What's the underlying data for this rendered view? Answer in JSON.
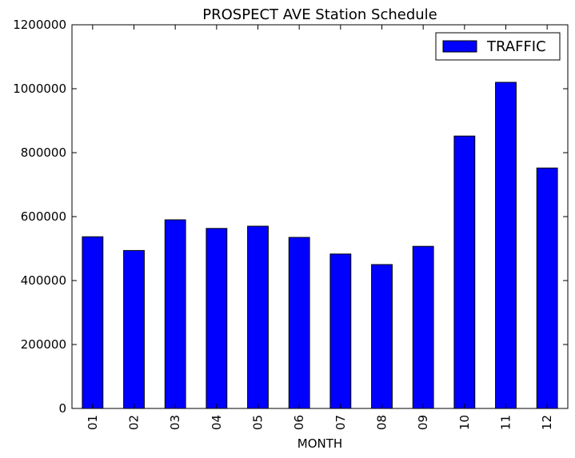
{
  "chart_data": {
    "type": "bar",
    "title": "PROSPECT AVE Station Schedule",
    "xlabel": "MONTH",
    "ylabel": "",
    "categories": [
      "01",
      "02",
      "03",
      "04",
      "05",
      "06",
      "07",
      "08",
      "09",
      "10",
      "11",
      "12"
    ],
    "series": [
      {
        "name": "TRAFFIC",
        "values": [
          537000,
          494000,
          590000,
          563000,
          570000,
          535000,
          483000,
          450000,
          507000,
          852000,
          1020000,
          752000
        ]
      }
    ],
    "ylim": [
      0,
      1200000
    ],
    "yticks": [
      "0",
      "200000",
      "400000",
      "600000",
      "800000",
      "1000000",
      "1200000"
    ],
    "legend_position": "top-right",
    "grid": false,
    "colors": {
      "bar": "#0000ff",
      "edge": "#000000"
    }
  }
}
